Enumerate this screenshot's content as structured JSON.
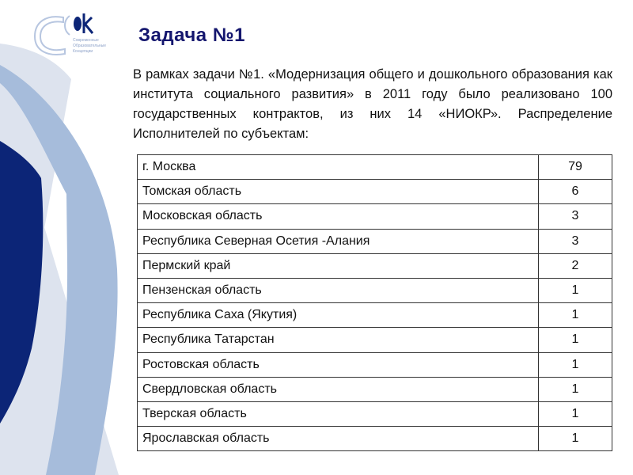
{
  "logo": {
    "text": "Современные Образовательные Концепции",
    "colors": {
      "light": "#c3d0e6",
      "dark": "#0c2577"
    }
  },
  "title": "Задача №1",
  "intro": "В рамках задачи №1. «Модернизация общего и дошкольного образования как института социального развития» в 2011 году было реализовано 100 государственных контрактов, из них 14 «НИОКР». Распределение Исполнителей по субъектам:",
  "table": {
    "rows": [
      {
        "region": "г. Москва",
        "count": "79"
      },
      {
        "region": "Томская область",
        "count": "6"
      },
      {
        "region": "Московская область",
        "count": "3"
      },
      {
        "region": "Республика Северная Осетия -Алания",
        "count": "3"
      },
      {
        "region": "Пермский край",
        "count": "2"
      },
      {
        "region": "Пензенская область",
        "count": "1"
      },
      {
        "region": "Республика Саха (Якутия)",
        "count": "1"
      },
      {
        "region": "Республика Татарстан",
        "count": "1"
      },
      {
        "region": "Ростовская область",
        "count": "1"
      },
      {
        "region": "Свердловская область",
        "count": "1"
      },
      {
        "region": "Тверская область",
        "count": "1"
      },
      {
        "region": "Ярославская область",
        "count": "1"
      }
    ]
  },
  "colors": {
    "navy": "#0c2577",
    "band": "#a6bcdb",
    "light": "#dde3ee",
    "title": "#14166e"
  }
}
